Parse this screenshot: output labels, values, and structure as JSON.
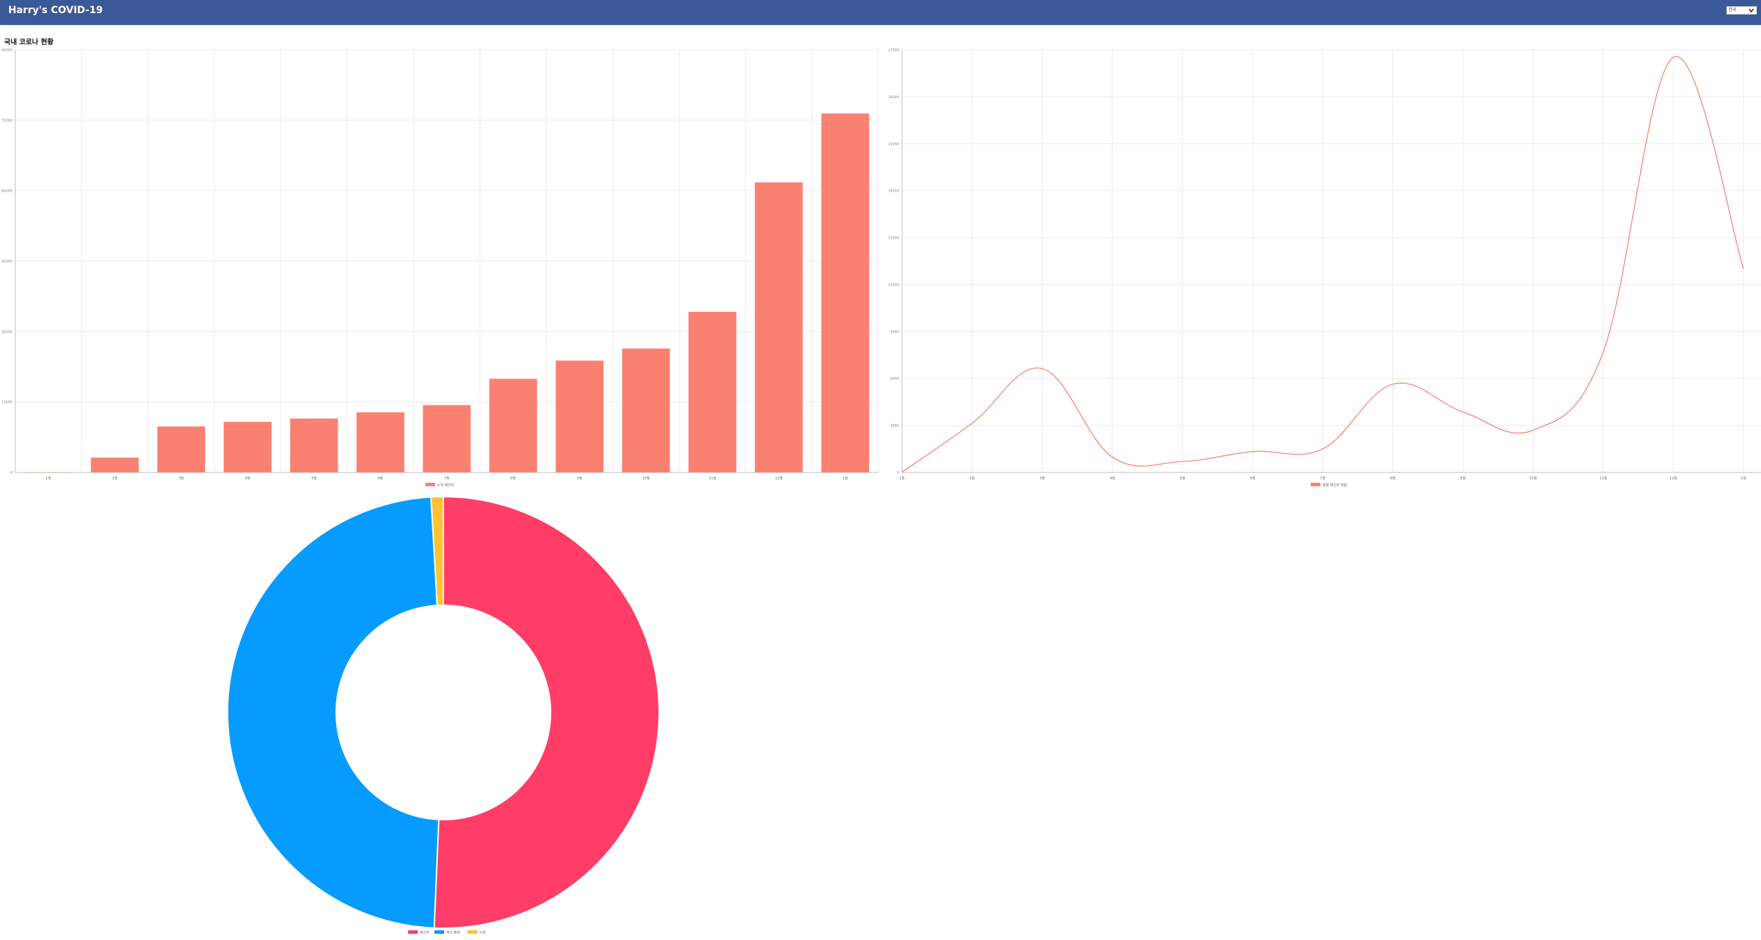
{
  "header": {
    "title": "Harry's COVID-19",
    "country_select": {
      "value": "한국"
    }
  },
  "section": {
    "title": "국내 코로나 현황"
  },
  "colors": {
    "header_bg": "#3b5998",
    "bar": "#fa8072",
    "line": "#fa8072",
    "confirmed": "#ff3d67",
    "recovered": "#059bff",
    "deaths": "#ffc233"
  },
  "chart_data": [
    {
      "type": "bar",
      "categories": [
        "1월",
        "2월",
        "3월",
        "4월",
        "5월",
        "6월",
        "7월",
        "8월",
        "9월",
        "10월",
        "11월",
        "12월",
        "1월"
      ],
      "series": [
        {
          "name": "누적 확진자",
          "values": [
            11,
            3150,
            9786,
            10765,
            11468,
            12800,
            14336,
            19947,
            23812,
            26385,
            34201,
            61769,
            76429
          ]
        }
      ],
      "ylim": [
        0,
        90000
      ],
      "yticks": [
        0,
        15000,
        30000,
        45000,
        60000,
        75000,
        90000
      ],
      "grid": true,
      "legend": "bottom"
    },
    {
      "type": "line",
      "categories": [
        "1월",
        "2월",
        "3월",
        "4월",
        "5월",
        "6월",
        "7월",
        "8월",
        "9월",
        "10월",
        "11월",
        "12월",
        "1월"
      ],
      "series": [
        {
          "name": "월별 확진자 현황",
          "values": [
            11,
            3139,
            6636,
            979,
            703,
            1332,
            1506,
            5642,
            3865,
            2700,
            7688,
            26523,
            13000
          ]
        }
      ],
      "ylim": [
        0,
        27000
      ],
      "yticks": [
        0,
        3000,
        6000,
        9000,
        12000,
        15000,
        18000,
        21000,
        24000,
        27000
      ],
      "grid": true,
      "legend": "bottom"
    },
    {
      "type": "pie",
      "donut": true,
      "labels": [
        "확진자",
        "격리 해제",
        "사망"
      ],
      "values": [
        76429,
        73000,
        1378
      ],
      "legend": "bottom"
    }
  ]
}
